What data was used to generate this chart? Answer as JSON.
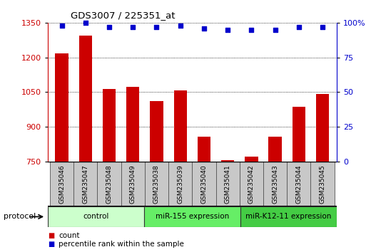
{
  "title": "GDS3007 / 225351_at",
  "categories": [
    "GSM235046",
    "GSM235047",
    "GSM235048",
    "GSM235049",
    "GSM235038",
    "GSM235039",
    "GSM235040",
    "GSM235041",
    "GSM235042",
    "GSM235043",
    "GSM235044",
    "GSM235045"
  ],
  "bar_values": [
    1218,
    1295,
    1063,
    1072,
    1010,
    1058,
    858,
    755,
    770,
    858,
    985,
    1040
  ],
  "scatter_values": [
    98,
    100,
    97,
    97,
    97,
    98,
    96,
    95,
    95,
    95,
    97,
    97
  ],
  "bar_color": "#cc0000",
  "scatter_color": "#0000cc",
  "ylim_left": [
    750,
    1350
  ],
  "ylim_right": [
    0,
    100
  ],
  "yticks_left": [
    750,
    900,
    1050,
    1200,
    1350
  ],
  "yticks_right": [
    0,
    25,
    50,
    75,
    100
  ],
  "bg_color": "#ffffff",
  "plot_bg": "#ffffff",
  "label_bg": "#c8c8c8",
  "group_bounds": [
    [
      0,
      4,
      "control",
      "#ccffcc"
    ],
    [
      4,
      8,
      "miR-155 expression",
      "#66ee66"
    ],
    [
      8,
      12,
      "miR-K12-11 expression",
      "#44cc44"
    ]
  ],
  "legend_count_label": "count",
  "legend_pct_label": "percentile rank within the sample",
  "protocol_label": "protocol"
}
